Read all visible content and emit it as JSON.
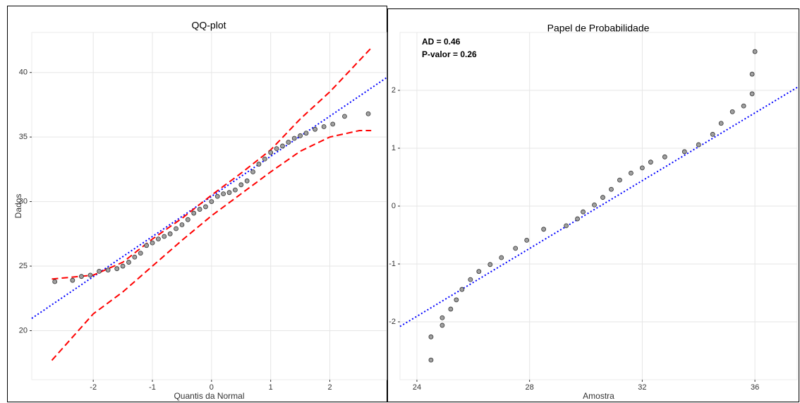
{
  "chart_data": [
    {
      "type": "scatter",
      "title": "QQ-plot",
      "x_label": "Quantis da Normal",
      "y_label": "Dados",
      "x": [
        -2.65,
        -2.35,
        -2.2,
        -2.05,
        -1.9,
        -1.75,
        -1.6,
        -1.5,
        -1.4,
        -1.3,
        -1.2,
        -1.1,
        -1.0,
        -0.9,
        -0.8,
        -0.7,
        -0.6,
        -0.5,
        -0.4,
        -0.3,
        -0.2,
        -0.1,
        0,
        0.1,
        0.2,
        0.3,
        0.4,
        0.5,
        0.6,
        0.7,
        0.8,
        0.9,
        1.0,
        1.1,
        1.2,
        1.3,
        1.4,
        1.5,
        1.6,
        1.75,
        1.9,
        2.05,
        2.25,
        2.65
      ],
      "values": [
        23.8,
        23.9,
        24.2,
        24.3,
        24.6,
        24.7,
        24.8,
        25.0,
        25.3,
        25.7,
        26.0,
        26.6,
        26.8,
        27.1,
        27.3,
        27.5,
        27.9,
        28.2,
        28.6,
        29.1,
        29.4,
        29.6,
        30.0,
        30.4,
        30.6,
        30.7,
        30.9,
        31.3,
        31.6,
        32.3,
        32.9,
        33.3,
        33.8,
        34.1,
        34.3,
        34.6,
        34.9,
        35.1,
        35.3,
        35.6,
        35.8,
        36.0,
        36.6,
        36.8
      ],
      "color": "#a0a0a0",
      "lines": [
        {
          "color": "#0000ff",
          "style": "dotted",
          "x": [
            -3.04,
            2.96
          ],
          "values": [
            20.95,
            39.6
          ]
        },
        {
          "color": "#ff0000",
          "style": "dashed",
          "x": [
            -2.7,
            -2,
            -1.5,
            -1,
            -0.5,
            0,
            0.5,
            1,
            1.5,
            2,
            2.7
          ],
          "values": [
            24.0,
            24.3,
            25.3,
            27.1,
            28.7,
            30.5,
            32.2,
            34.0,
            36.4,
            38.5,
            41.9
          ]
        },
        {
          "color": "#ff0000",
          "style": "dashed",
          "x": [
            -2.7,
            -2,
            -1.5,
            -1,
            -0.5,
            0,
            0.5,
            1,
            1.5,
            2,
            2.5,
            2.7
          ],
          "values": [
            17.7,
            21.3,
            23.0,
            25.0,
            27.0,
            28.9,
            30.6,
            32.3,
            33.9,
            35.0,
            35.5,
            35.5
          ]
        }
      ],
      "xlim": [
        -3.04,
        2.96
      ],
      "ylim": [
        16.2,
        43.1
      ],
      "xticks": [
        -2,
        -1,
        0,
        1,
        2
      ],
      "yticks": [
        20,
        25,
        30,
        35,
        40
      ],
      "grid": true
    },
    {
      "type": "scatter",
      "title": "Papel de Probabilidade",
      "x_label": "Amostra",
      "annotations": [
        "AD = 0.46",
        "P-valor = 0.26"
      ],
      "x": [
        24.5,
        24.5,
        24.9,
        24.9,
        25.2,
        25.4,
        25.6,
        25.9,
        26.2,
        26.6,
        27.0,
        27.5,
        27.9,
        28.5,
        29.3,
        29.7,
        29.9,
        30.3,
        30.6,
        30.9,
        31.2,
        31.6,
        32.0,
        32.3,
        32.8,
        33.5,
        34.0,
        34.5,
        34.8,
        35.2,
        35.6,
        35.9,
        35.9,
        36.0
      ],
      "values": [
        -2.66,
        -2.26,
        -2.06,
        -1.93,
        -1.78,
        -1.62,
        -1.44,
        -1.27,
        -1.13,
        -1.01,
        -0.89,
        -0.73,
        -0.59,
        -0.4,
        -0.34,
        -0.22,
        -0.1,
        0.02,
        0.15,
        0.29,
        0.45,
        0.57,
        0.66,
        0.76,
        0.85,
        0.94,
        1.06,
        1.24,
        1.43,
        1.63,
        1.73,
        1.94,
        2.28,
        2.67
      ],
      "color": "#a0a0a0",
      "lines": [
        {
          "color": "#0000ff",
          "style": "dotted",
          "x": [
            23.4,
            37.5
          ],
          "values": [
            -2.08,
            2.05
          ]
        }
      ],
      "xlim": [
        23.4,
        37.5
      ],
      "ylim": [
        -3.0,
        3.0
      ],
      "xticks": [
        24,
        28,
        32,
        36
      ],
      "yticks": [
        -2,
        -1,
        0,
        1,
        2
      ],
      "grid": true
    }
  ]
}
